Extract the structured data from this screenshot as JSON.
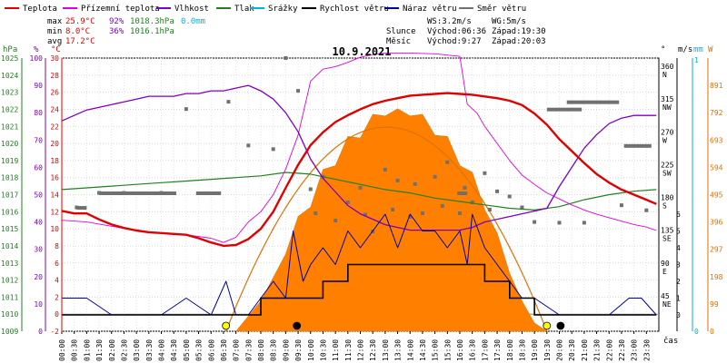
{
  "chart_data": {
    "type": "line",
    "title": "10.9.2021",
    "legend": [
      {
        "label": "Teplota",
        "color": "#e00000"
      },
      {
        "label": "Přízemní teplota",
        "color": "#e000e0"
      },
      {
        "label": "Vlhkost",
        "color": "#8000c0"
      },
      {
        "label": "Tlak",
        "color": "#208020"
      },
      {
        "label": "Srážky",
        "color": "#00b0e0"
      },
      {
        "label": "Rychlost větru",
        "color": "#000000"
      },
      {
        "label": "Náraz větru",
        "color": "#0000a0"
      },
      {
        "label": "Směr větru",
        "color": "#707070"
      }
    ],
    "stats": {
      "max": {
        "label": "max",
        "temp": "25.9°C",
        "hum": "92%",
        "press": "1018.3hPa",
        "rain": "0.0mm"
      },
      "min": {
        "label": "min",
        "temp": "8.0°C",
        "hum": "36%",
        "press": "1016.1hPa"
      },
      "avg": {
        "label": "avg",
        "temp": "17.2°C"
      }
    },
    "info": {
      "ws": "WS:3.2m/s",
      "wg": "WG:5m/s",
      "sun_label": "Slunce",
      "sun_rise": "Východ:06:36",
      "sun_set": "Západ:19:30",
      "moon_label": "Měsíc",
      "moon_rise": "Východ:9:27",
      "moon_set": "Západ:20:03"
    },
    "axes": {
      "hpa": {
        "unit": "hPa",
        "ticks": [
          "1025",
          "1024",
          "1023",
          "1022",
          "1021",
          "1020",
          "1019",
          "1018",
          "1017",
          "1016",
          "1015",
          "1014",
          "1013",
          "1012",
          "1011",
          "1010",
          "1009"
        ],
        "ylim": [
          1009,
          1025
        ]
      },
      "pct": {
        "unit": "%",
        "ticks": [
          "100",
          "90",
          "80",
          "70",
          "60",
          "50",
          "40",
          "30",
          "20",
          "10",
          "0"
        ],
        "ylim": [
          0,
          100
        ]
      },
      "temp": {
        "unit": "°C",
        "ticks": [
          "30",
          "28",
          "26",
          "24",
          "22",
          "20",
          "18",
          "16",
          "14",
          "12",
          "10",
          "8",
          "6",
          "4",
          "2",
          "0",
          "-2"
        ],
        "ylim": [
          -2,
          30
        ]
      },
      "dir": {
        "unit": "°",
        "ticks": [
          "360",
          "315",
          "270",
          "225",
          "180",
          "135",
          "90",
          "45"
        ],
        "names": [
          "N",
          "NW",
          "W",
          "SW",
          "S",
          "SE",
          "E",
          "NE"
        ]
      },
      "ms": {
        "unit": "m/s",
        "ticks": [
          "6",
          "5",
          "4",
          "3",
          "2",
          "1",
          "0"
        ]
      },
      "mm": {
        "unit": "mm",
        "ticks": [
          "1",
          "0"
        ]
      },
      "wm2": {
        "unit": "W",
        "ticks": [
          "891",
          "792",
          "693",
          "594",
          "495",
          "396",
          "297",
          "198",
          "99",
          "0"
        ],
        "ylim": [
          0,
          990
        ]
      },
      "x_label": "čas",
      "x_ticks": [
        "00:00",
        "00:30",
        "01:00",
        "01:30",
        "02:00",
        "02:30",
        "03:00",
        "03:30",
        "04:00",
        "04:30",
        "05:00",
        "05:30",
        "06:00",
        "06:30",
        "07:00",
        "07:30",
        "08:00",
        "08:30",
        "09:00",
        "09:30",
        "10:00",
        "10:30",
        "11:00",
        "11:30",
        "12:00",
        "12:30",
        "13:00",
        "13:30",
        "14:00",
        "14:30",
        "15:00",
        "15:30",
        "16:00",
        "16:30",
        "17:00",
        "17:30",
        "18:00",
        "18:30",
        "19:00",
        "19:30",
        "20:00",
        "20:30",
        "21:00",
        "21:30",
        "22:00",
        "22:30",
        "23:00",
        "23:30"
      ]
    },
    "series": [
      {
        "name": "Teplota",
        "unit": "°C",
        "x_hours": [
          0,
          0.5,
          1,
          1.5,
          2,
          2.5,
          3,
          3.5,
          4,
          4.5,
          5,
          5.5,
          6,
          6.5,
          7,
          7.5,
          8,
          8.5,
          9,
          9.5,
          10,
          10.5,
          11,
          11.5,
          12,
          12.5,
          13,
          13.5,
          14,
          14.5,
          15,
          15.5,
          16,
          16.5,
          17,
          17.5,
          18,
          18.5,
          19,
          19.5,
          20,
          20.5,
          21,
          21.5,
          22,
          22.5,
          23,
          23.5,
          23.9
        ],
        "y": [
          12.1,
          11.8,
          11.8,
          11.1,
          10.5,
          10.1,
          9.8,
          9.6,
          9.5,
          9.4,
          9.3,
          8.9,
          8.4,
          8.0,
          8.1,
          8.8,
          10.0,
          12.0,
          14.8,
          17.5,
          19.8,
          21.3,
          22.5,
          23.3,
          24.0,
          24.6,
          25.0,
          25.3,
          25.6,
          25.7,
          25.8,
          25.9,
          25.8,
          25.7,
          25.5,
          25.3,
          25.0,
          24.5,
          23.5,
          22.2,
          20.5,
          19.1,
          17.7,
          16.4,
          15.4,
          14.6,
          14.0,
          13.4,
          12.9
        ]
      },
      {
        "name": "Přízemní teplota",
        "unit": "°C",
        "x_hours": [
          0,
          1,
          2,
          3,
          4,
          5,
          6,
          6.5,
          7,
          7.5,
          8,
          8.5,
          9,
          9.5,
          10,
          10.5,
          11,
          11.5,
          12,
          12.5,
          13,
          14,
          15,
          16,
          16.3,
          16.7,
          17,
          17.5,
          18,
          18.5,
          19,
          19.5,
          20,
          20.5,
          21,
          21.5,
          22,
          22.5,
          23,
          23.5,
          23.9
        ],
        "y": [
          11.0,
          10.8,
          10.3,
          9.8,
          9.5,
          9.3,
          8.9,
          8.4,
          9.0,
          10.8,
          12.0,
          14.0,
          17.0,
          21.0,
          27.3,
          28.7,
          29.0,
          29.5,
          30.1,
          30.4,
          30.6,
          30.6,
          30.5,
          30.2,
          24.6,
          23.5,
          22.0,
          20.0,
          18.0,
          16.3,
          15.2,
          14.2,
          13.5,
          12.8,
          12.2,
          11.7,
          11.3,
          10.9,
          10.5,
          10.2,
          9.8
        ]
      },
      {
        "name": "Vlhkost",
        "unit": "%",
        "x_hours": [
          0,
          0.5,
          1,
          1.5,
          2,
          2.5,
          3,
          3.5,
          4,
          4.5,
          5,
          5.5,
          6,
          6.5,
          7,
          7.5,
          8,
          8.5,
          9,
          9.5,
          10,
          10.5,
          11,
          11.5,
          12,
          12.5,
          13,
          13.5,
          14,
          14.5,
          15,
          15.5,
          16,
          16.5,
          17,
          17.5,
          18,
          18.5,
          19,
          19.5,
          20,
          20.5,
          21,
          21.5,
          22,
          22.5,
          23,
          23.5,
          23.9
        ],
        "y": [
          77,
          79,
          81,
          82,
          83,
          84,
          85,
          86,
          86,
          86,
          87,
          87,
          88,
          88,
          89,
          90,
          88,
          85,
          80,
          73,
          63,
          56,
          51,
          46,
          43,
          41,
          39,
          38,
          37,
          37,
          37,
          37,
          37,
          38,
          40,
          41,
          42,
          43,
          44,
          45,
          53,
          60,
          67,
          72,
          76,
          78,
          79,
          79,
          79
        ]
      },
      {
        "name": "Tlak",
        "unit": "hPa",
        "x_hours": [
          0,
          1,
          2,
          3,
          4,
          5,
          6,
          7,
          8,
          9,
          10,
          11,
          12,
          13,
          14,
          15,
          16,
          17,
          18,
          19,
          20,
          21,
          22,
          23,
          23.9
        ],
        "y": [
          1017.3,
          1017.4,
          1017.5,
          1017.6,
          1017.7,
          1017.8,
          1017.9,
          1018.0,
          1018.1,
          1018.3,
          1018.2,
          1017.9,
          1017.6,
          1017.3,
          1017.1,
          1016.8,
          1016.6,
          1016.4,
          1016.2,
          1016.1,
          1016.3,
          1016.7,
          1017.0,
          1017.2,
          1017.3
        ]
      },
      {
        "name": "Rychlost větru",
        "unit": "m/s",
        "x_hours": [
          0,
          1,
          2,
          3,
          4,
          5,
          6,
          7,
          7.5,
          8,
          8.5,
          9,
          9.5,
          10,
          10.5,
          11,
          11.5,
          12,
          12.5,
          13,
          13.5,
          14,
          14.5,
          15,
          15.5,
          16,
          16.5,
          17,
          17.5,
          18,
          18.5,
          19,
          20,
          21,
          22,
          23,
          23.9
        ],
        "y": [
          0,
          0,
          0,
          0,
          0,
          0,
          0,
          0,
          0,
          1,
          1,
          1,
          1,
          1,
          2,
          2,
          3,
          3,
          3,
          3,
          3,
          3,
          3,
          3,
          3,
          3,
          3,
          2,
          2,
          1,
          1,
          0,
          0,
          0,
          0,
          0,
          0
        ]
      },
      {
        "name": "Náraz větru",
        "unit": "m/s",
        "x_hours": [
          0,
          1,
          2,
          3,
          4,
          5,
          6,
          6.6,
          7,
          7.5,
          8,
          8.5,
          9,
          9.3,
          9.7,
          10,
          10.5,
          11,
          11.5,
          12,
          12.5,
          13,
          13.5,
          14,
          14.5,
          15,
          15.5,
          16,
          16.3,
          16.5,
          17,
          17.5,
          18,
          18.5,
          19,
          20,
          21,
          22,
          22.8,
          23.3,
          23.9
        ],
        "y": [
          1,
          1,
          0,
          0,
          0,
          1,
          0,
          2,
          0,
          0,
          1,
          2,
          1,
          5,
          2,
          3,
          4,
          3,
          5,
          4,
          5,
          6,
          4,
          6,
          5,
          5,
          4,
          5,
          3,
          6,
          4,
          3,
          2,
          1,
          1,
          0,
          0,
          0,
          1,
          1,
          0
        ]
      },
      {
        "name": "Sluneční záření",
        "unit": "W/m²",
        "x_hours": [
          7,
          8,
          9,
          9.5,
          10,
          10.5,
          11,
          11.5,
          12,
          12.5,
          13,
          13.5,
          14,
          14.5,
          15,
          15.5,
          16,
          16.5,
          17,
          17.5,
          18,
          18.5,
          19,
          19.5
        ],
        "y": [
          0,
          110,
          280,
          390,
          470,
          560,
          620,
          680,
          720,
          760,
          800,
          780,
          800,
          760,
          730,
          680,
          620,
          550,
          460,
          330,
          210,
          110,
          30,
          0
        ]
      },
      {
        "name": "Směr větru",
        "unit": "°",
        "x_hours": [
          0.6,
          1.5,
          2.5,
          4.0,
          5.0,
          6.7,
          7.5,
          8.5,
          9.0,
          9.5,
          10.0,
          10.2,
          10.5,
          11.0,
          11.5,
          12.0,
          12.2,
          12.5,
          13.0,
          13.3,
          13.5,
          14.0,
          14.2,
          14.5,
          15.0,
          15.3,
          15.5,
          16.0,
          16.2,
          16.5,
          17.0,
          17.2,
          17.5,
          18.0,
          18.5,
          19.0,
          20.0,
          21.0,
          22.5,
          23.5
        ],
        "y": [
          170,
          190,
          190,
          190,
          305,
          315,
          255,
          250,
          375,
          330,
          195,
          162,
          212,
          152,
          177,
          197,
          160,
          137,
          222,
          167,
          207,
          157,
          202,
          162,
          212,
          172,
          232,
          162,
          197,
          177,
          217,
          167,
          192,
          185,
          170,
          150,
          149,
          149,
          173,
          166
        ]
      },
      {
        "name": "Sluneční dráha",
        "unit": "W/m²",
        "x_hours": [
          6.6,
          13.05,
          19.5
        ],
        "y": [
          0,
          740,
          0
        ]
      }
    ]
  }
}
